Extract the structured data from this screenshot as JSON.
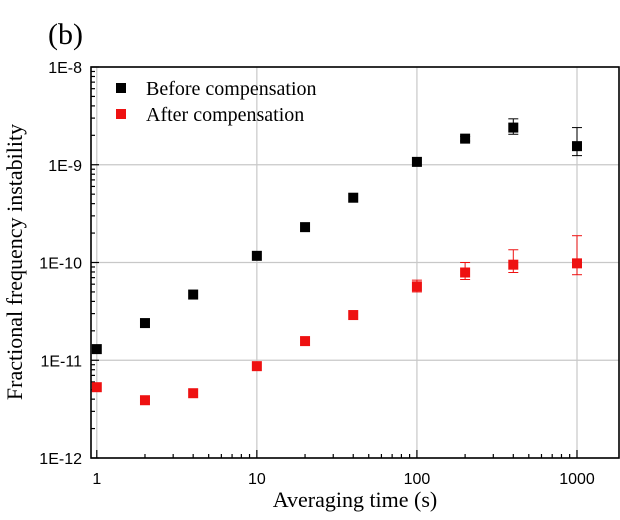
{
  "chart_data": {
    "type": "scatter",
    "panel_label": "(b)",
    "title": "",
    "xlabel": "Averaging time (s)",
    "ylabel": "Fractional frequency instability",
    "xscale": "log",
    "yscale": "log",
    "xlim": [
      0.92,
      1830
    ],
    "ylim": [
      1e-12,
      1e-08
    ],
    "xticks": [
      {
        "value": 1,
        "label": "1"
      },
      {
        "value": 10,
        "label": "10"
      },
      {
        "value": 100,
        "label": "100"
      },
      {
        "value": 1000,
        "label": "1000"
      }
    ],
    "yticks": [
      {
        "value": 1e-08,
        "label": "1E-8"
      },
      {
        "value": 1e-09,
        "label": "1E-9"
      },
      {
        "value": 1e-10,
        "label": "1E-10"
      },
      {
        "value": 1e-11,
        "label": "1E-11"
      },
      {
        "value": 1e-12,
        "label": "1E-12"
      }
    ],
    "grid": true,
    "legend_position": "top-left",
    "series": [
      {
        "name": "Before compensation",
        "color": "#000000",
        "marker": "square",
        "x": [
          1,
          2,
          4,
          10,
          20,
          40,
          100,
          200,
          400,
          1000
        ],
        "y": [
          1.3e-11,
          2.4e-11,
          4.7e-11,
          1.17e-10,
          2.3e-10,
          4.6e-10,
          1.07e-09,
          1.85e-09,
          2.4e-09,
          1.55e-09
        ],
        "err_low": [
          null,
          null,
          null,
          null,
          null,
          null,
          null,
          1.75e-09,
          2.05e-09,
          1.24e-09
        ],
        "err_high": [
          null,
          null,
          null,
          null,
          null,
          null,
          null,
          1.95e-09,
          2.95e-09,
          2.4e-09
        ]
      },
      {
        "name": "After compensation",
        "color": "#ee1111",
        "marker": "square",
        "x": [
          1,
          2,
          4,
          10,
          20,
          40,
          100,
          200,
          400,
          1000
        ],
        "y": [
          5.3e-12,
          3.9e-12,
          4.6e-12,
          8.7e-12,
          1.57e-11,
          2.9e-11,
          5.7e-11,
          7.9e-11,
          9.5e-11,
          9.8e-11
        ],
        "err_low": [
          null,
          null,
          null,
          null,
          null,
          null,
          5e-11,
          6.7e-11,
          7.9e-11,
          7.5e-11
        ],
        "err_high": [
          null,
          null,
          null,
          null,
          null,
          null,
          6.6e-11,
          1e-10,
          1.35e-10,
          1.88e-10
        ]
      }
    ]
  }
}
